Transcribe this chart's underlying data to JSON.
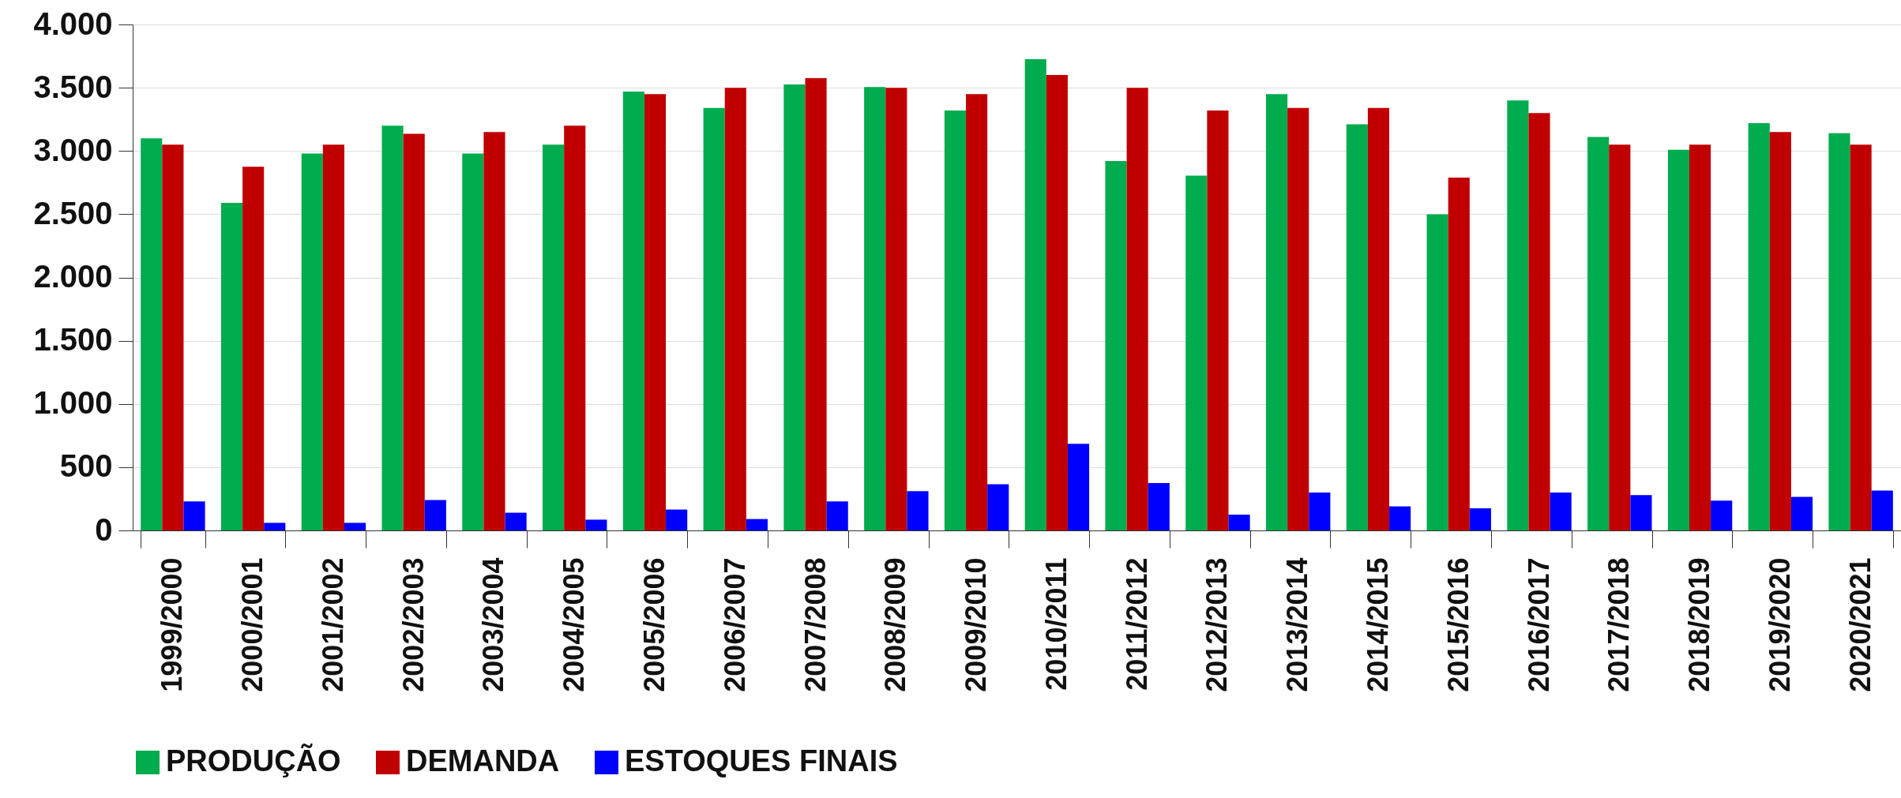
{
  "chart_data": {
    "type": "bar",
    "categories": [
      "1999/2000",
      "2000/2001",
      "2001/2002",
      "2002/2003",
      "2003/2004",
      "2004/2005",
      "2005/2006",
      "2006/2007",
      "2007/2008",
      "2008/2009",
      "2009/2010",
      "2010/2011",
      "2011/2012",
      "2012/2013",
      "2013/2014",
      "2014/2015",
      "2015/2016",
      "2016/2017",
      "2017/2018",
      "2018/2019",
      "2019/2020",
      "2020/2021"
    ],
    "series": [
      {
        "name": "PRODUÇÃO",
        "color": "#00ac4e",
        "values": [
          3100,
          2590,
          2980,
          3200,
          2980,
          3050,
          3470,
          3340,
          3525,
          3505,
          3320,
          3725,
          2920,
          2805,
          3450,
          3210,
          2500,
          3400,
          3110,
          3010,
          3220,
          3140
        ]
      },
      {
        "name": "DEMANDA",
        "color": "#c00000",
        "values": [
          3050,
          2875,
          3050,
          3135,
          3150,
          3200,
          3450,
          3500,
          3575,
          3500,
          3450,
          3600,
          3500,
          3320,
          3340,
          3340,
          2790,
          3300,
          3050,
          3050,
          3150,
          3050
        ]
      },
      {
        "name": "ESTOQUES FINAIS",
        "color": "#0000ff",
        "values": [
          230,
          60,
          60,
          240,
          140,
          85,
          165,
          90,
          230,
          310,
          365,
          685,
          375,
          125,
          300,
          190,
          175,
          300,
          280,
          235,
          265,
          315
        ]
      }
    ],
    "ylim": [
      0,
      4000
    ],
    "yticks": [
      {
        "value": 0,
        "label": "0"
      },
      {
        "value": 500,
        "label": "500"
      },
      {
        "value": 1000,
        "label": "1.000"
      },
      {
        "value": 1500,
        "label": "1.500"
      },
      {
        "value": 2000,
        "label": "2.000"
      },
      {
        "value": 2500,
        "label": "2.500"
      },
      {
        "value": 3000,
        "label": "3.000"
      },
      {
        "value": 3500,
        "label": "3.500"
      },
      {
        "value": 4000,
        "label": "4.000"
      }
    ],
    "grid": "y",
    "legend": "bottom"
  }
}
